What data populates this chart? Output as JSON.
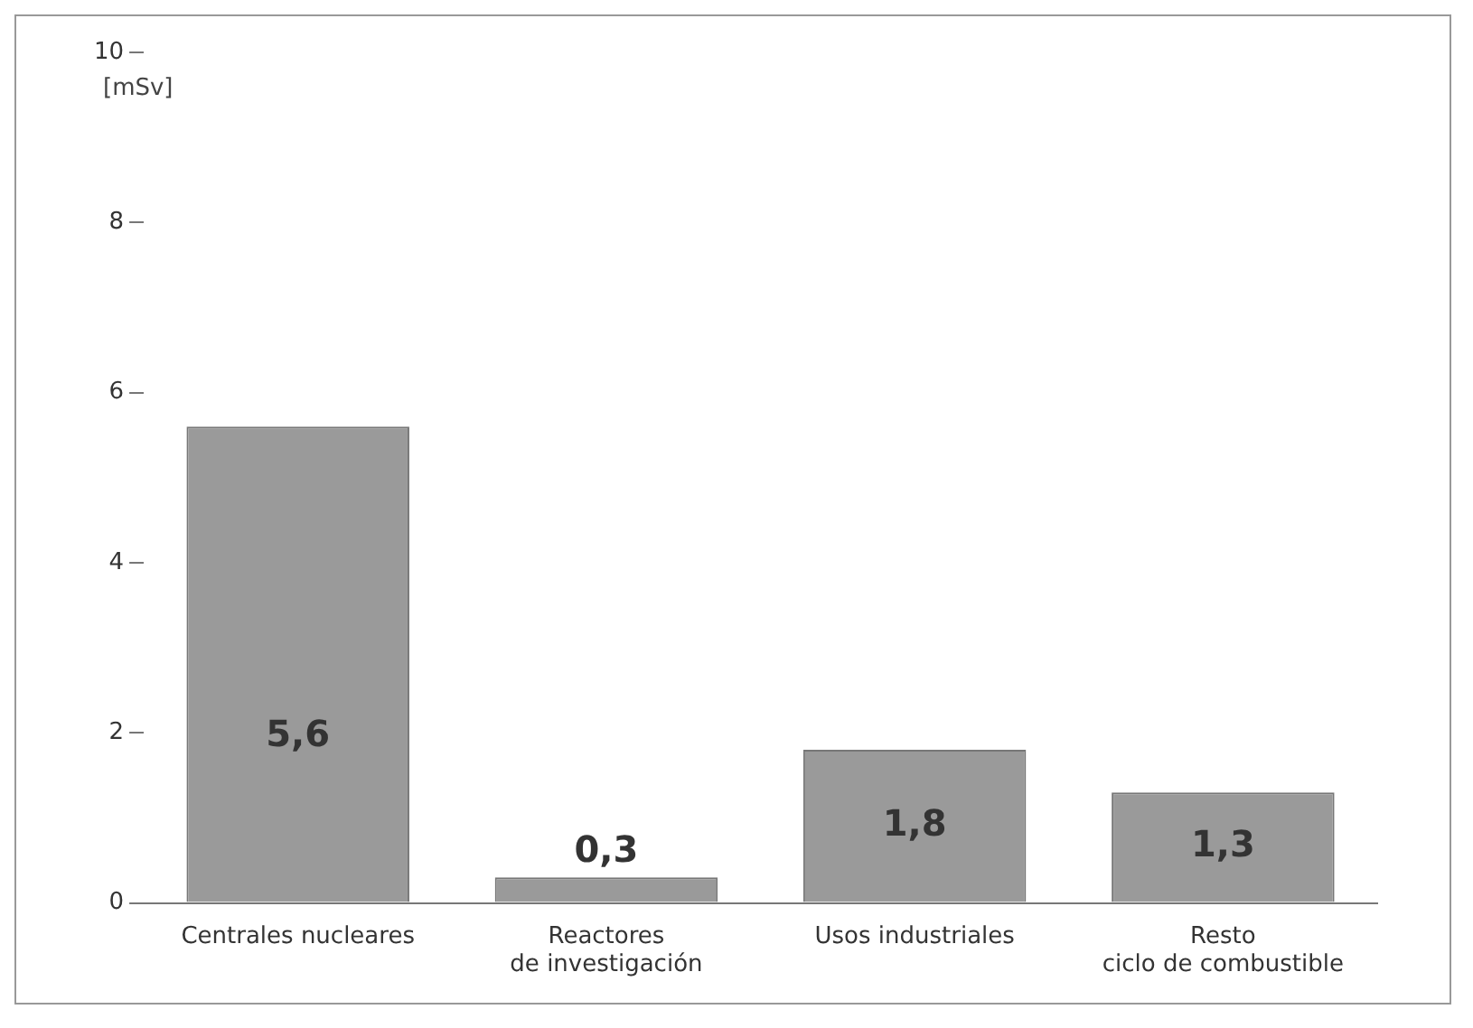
{
  "chart_data": {
    "type": "bar",
    "ylabel": "[mSv]",
    "categories": [
      "Centrales nucleares",
      "Reactores de investigación",
      "Usos industriales",
      "Resto ciclo de combustible"
    ],
    "values": [
      5.6,
      0.3,
      1.8,
      1.3
    ],
    "color": "#9a9a9a",
    "value_labels": [
      "5,6",
      "0,3",
      "1,8",
      "1,3"
    ],
    "ylim": [
      0,
      10
    ],
    "yticks": [
      0,
      2,
      4,
      6,
      8,
      10
    ],
    "grid": false
  }
}
